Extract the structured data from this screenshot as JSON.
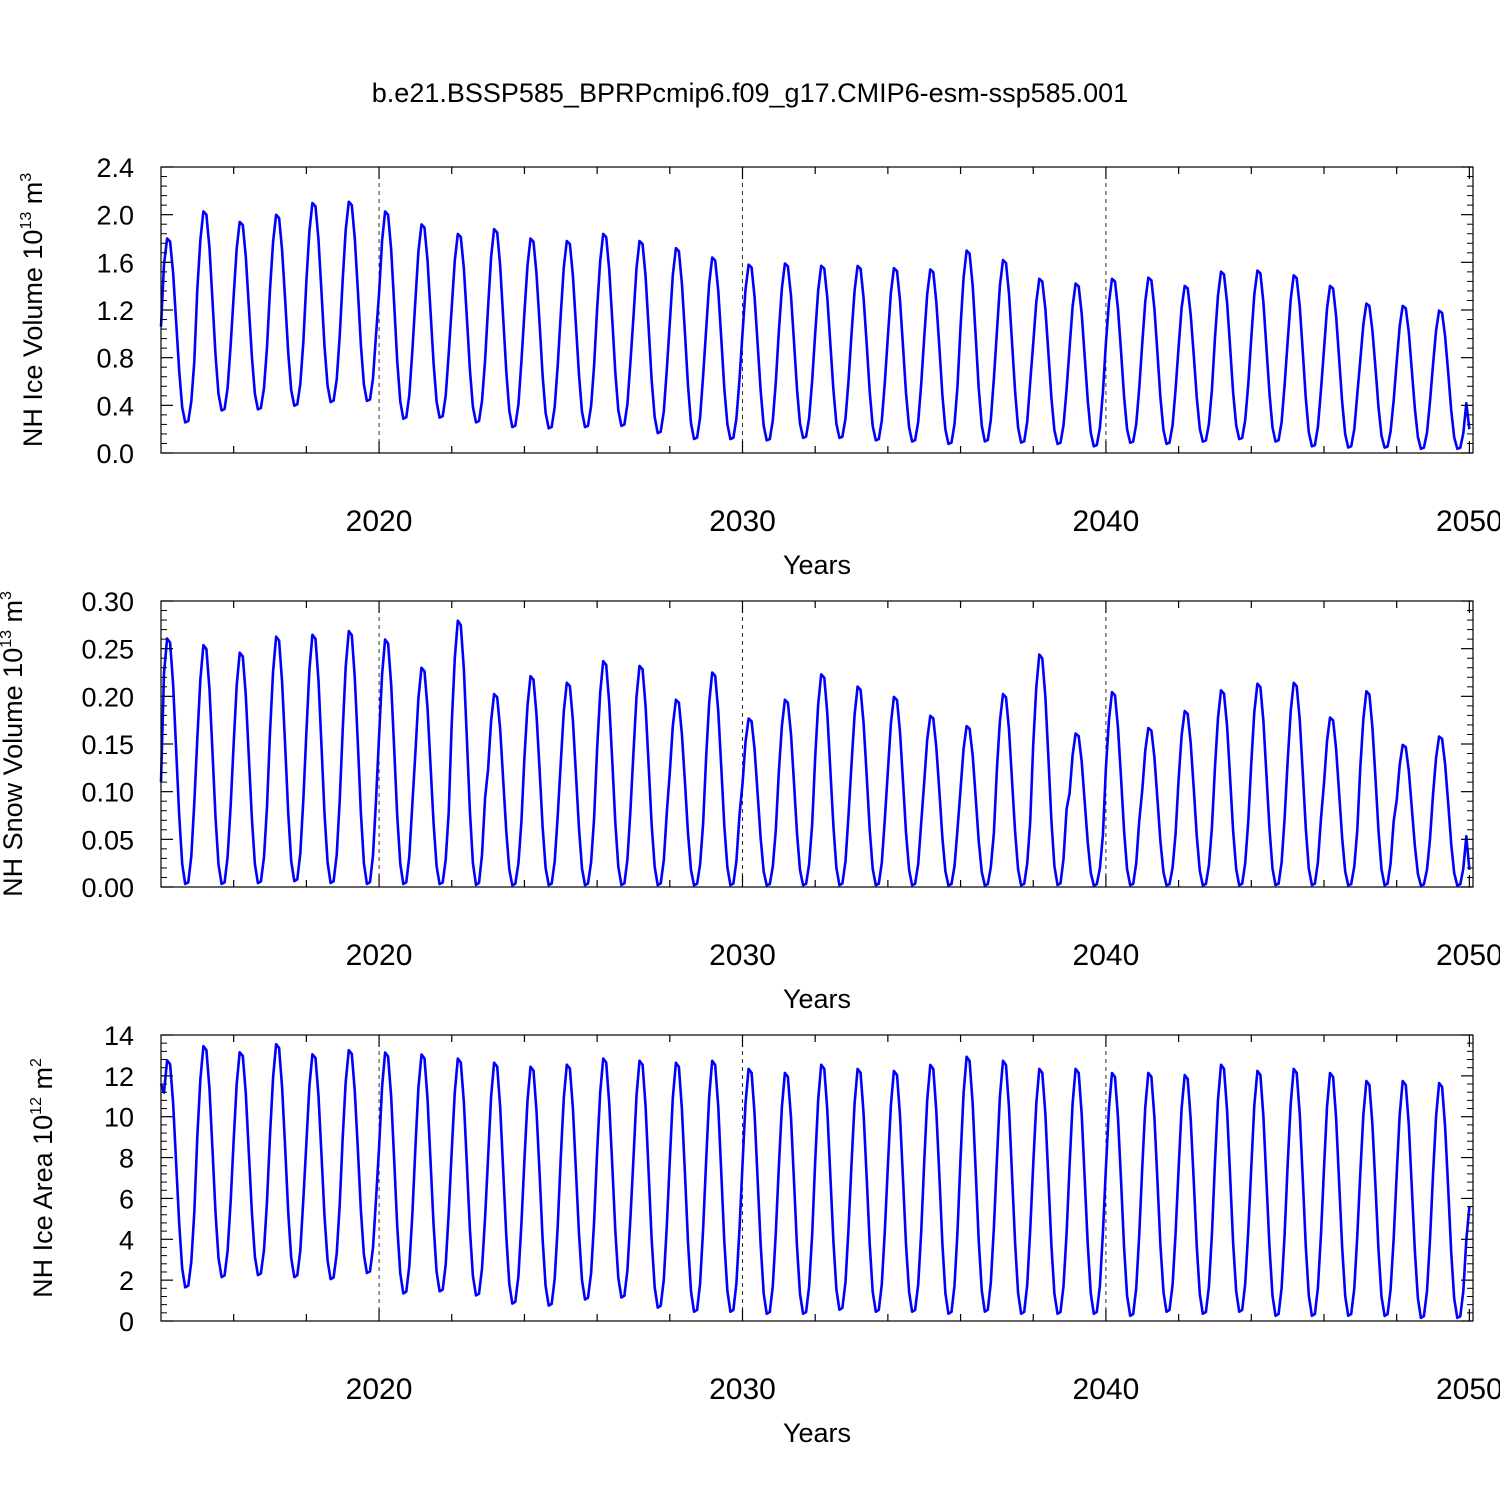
{
  "title": "b.e21.BSSP585_BPRPcmip6.f09_g17.CMIP6-esm-ssp585.001",
  "colors": {
    "line": "#0000ff",
    "axis": "#000000",
    "grid": "#000000"
  },
  "chart_data": [
    {
      "type": "line",
      "name": "nh-ice-volume",
      "ylabel": {
        "main": "NH Ice Volume 10",
        "exp": "13",
        "unit": " m",
        "unit_exp": "3"
      },
      "xlabel": "Years",
      "xlim": [
        2014.0,
        2050.1
      ],
      "ylim": [
        0.0,
        2.4
      ],
      "yticks": [
        0.0,
        0.4,
        0.8,
        1.2,
        1.6,
        2.0,
        2.4
      ],
      "ytick_labels": [
        "0.0",
        "0.4",
        "0.8",
        "1.2",
        "1.6",
        "2.0",
        "2.4"
      ],
      "xticks": [
        2020,
        2030,
        2040,
        2050
      ],
      "xtick_labels": [
        "2020",
        "2030",
        "2040",
        "2050"
      ],
      "x_start": 2014.0,
      "series": [
        {
          "name": "NH Ice Volume",
          "annual_max": [
            1.82,
            2.05,
            1.96,
            2.02,
            2.12,
            2.13,
            2.05,
            1.94,
            1.86,
            1.9,
            1.82,
            1.8,
            1.86,
            1.8,
            1.74,
            1.66,
            1.6,
            1.61,
            1.59,
            1.59,
            1.57,
            1.56,
            1.72,
            1.64,
            1.48,
            1.44,
            1.48,
            1.49,
            1.42,
            1.54,
            1.55,
            1.51,
            1.42,
            1.27,
            1.25,
            1.21
          ],
          "annual_min": [
            0.25,
            0.35,
            0.36,
            0.39,
            0.42,
            0.43,
            0.28,
            0.29,
            0.25,
            0.21,
            0.2,
            0.21,
            0.22,
            0.16,
            0.11,
            0.11,
            0.1,
            0.12,
            0.12,
            0.1,
            0.09,
            0.07,
            0.09,
            0.08,
            0.07,
            0.05,
            0.08,
            0.07,
            0.09,
            0.11,
            0.09,
            0.05,
            0.04,
            0.04,
            0.03,
            0.03
          ],
          "first_value": 1.06,
          "last_value": 0.2
        }
      ]
    },
    {
      "type": "line",
      "name": "nh-snow-volume",
      "ylabel": {
        "main": "NH Snow Volume 10",
        "exp": "13",
        "unit": " m",
        "unit_exp": "3"
      },
      "xlabel": "Years",
      "xlim": [
        2014.0,
        2050.1
      ],
      "ylim": [
        0.0,
        0.3
      ],
      "yticks": [
        0.0,
        0.05,
        0.1,
        0.15,
        0.2,
        0.25,
        0.3
      ],
      "ytick_labels": [
        "0.00",
        "0.05",
        "0.10",
        "0.15",
        "0.20",
        "0.25",
        "0.30"
      ],
      "xticks": [
        2020,
        2030,
        2040,
        2050
      ],
      "xtick_labels": [
        "2020",
        "2030",
        "2040",
        "2050"
      ],
      "x_start": 2014.0,
      "series": [
        {
          "name": "NH Snow Volume",
          "annual_max": [
            0.264,
            0.257,
            0.249,
            0.266,
            0.268,
            0.272,
            0.263,
            0.233,
            0.283,
            0.205,
            0.224,
            0.217,
            0.24,
            0.235,
            0.199,
            0.228,
            0.179,
            0.199,
            0.226,
            0.213,
            0.202,
            0.182,
            0.171,
            0.205,
            0.247,
            0.163,
            0.207,
            0.169,
            0.187,
            0.209,
            0.216,
            0.217,
            0.18,
            0.208,
            0.151,
            0.16
          ],
          "annual_min": [
            0.002,
            0.002,
            0.003,
            0.005,
            0.003,
            0.002,
            0.002,
            0.002,
            0.001,
            0.001,
            0.001,
            0.001,
            0.001,
            0.001,
            0.001,
            0.001,
            0.001,
            0.001,
            0.001,
            0.001,
            0.001,
            0.001,
            0.001,
            0.001,
            0.001,
            0.001,
            0.001,
            0.001,
            0.001,
            0.001,
            0.001,
            0.001,
            0.001,
            0.001,
            0.001,
            0.001
          ],
          "first_value": 0.11,
          "last_value": 0.018
        }
      ]
    },
    {
      "type": "line",
      "name": "nh-ice-area",
      "ylabel": {
        "main": "NH Ice Area 10",
        "exp": "12",
        "unit": " m",
        "unit_exp": "2"
      },
      "xlabel": "Years",
      "xlim": [
        2014.0,
        2050.1
      ],
      "ylim": [
        0,
        14
      ],
      "yticks": [
        0,
        2,
        4,
        6,
        8,
        10,
        12,
        14
      ],
      "ytick_labels": [
        "0",
        "2",
        "4",
        "6",
        "8",
        "10",
        "12",
        "14"
      ],
      "xticks": [
        2020,
        2030,
        2040,
        2050
      ],
      "xtick_labels": [
        "2020",
        "2030",
        "2040",
        "2050"
      ],
      "x_start": 2014.0,
      "series": [
        {
          "name": "NH Ice Area",
          "annual_max": [
            12.9,
            13.6,
            13.3,
            13.7,
            13.2,
            13.4,
            13.3,
            13.2,
            13.0,
            12.8,
            12.6,
            12.7,
            13.0,
            12.9,
            12.8,
            12.9,
            12.5,
            12.3,
            12.7,
            12.5,
            12.4,
            12.7,
            13.1,
            12.9,
            12.5,
            12.5,
            12.3,
            12.3,
            12.2,
            12.7,
            12.4,
            12.5,
            12.3,
            11.9,
            11.9,
            11.8
          ],
          "annual_min": [
            1.6,
            2.1,
            2.2,
            2.1,
            2.0,
            2.3,
            1.3,
            1.4,
            1.2,
            0.8,
            0.7,
            1.0,
            1.1,
            0.6,
            0.4,
            0.4,
            0.3,
            0.3,
            0.5,
            0.4,
            0.4,
            0.3,
            0.4,
            0.3,
            0.3,
            0.3,
            0.2,
            0.4,
            0.3,
            0.4,
            0.2,
            0.2,
            0.2,
            0.2,
            0.1,
            0.1
          ],
          "first_value": 11.6,
          "last_value": 5.6
        }
      ]
    }
  ]
}
